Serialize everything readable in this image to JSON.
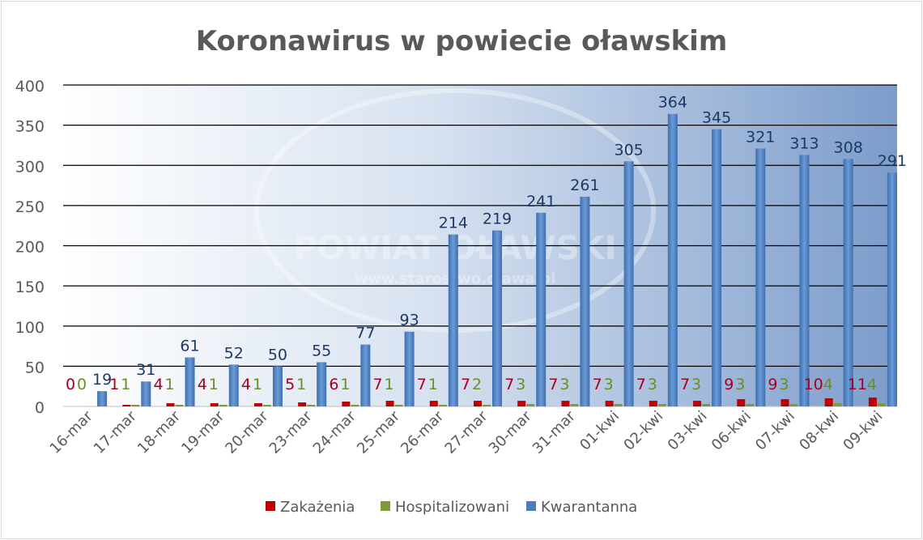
{
  "chart_data": {
    "type": "bar",
    "title": "Koronawirus w powiecie oławskim",
    "xlabel": "",
    "ylabel": "",
    "ylim": [
      0,
      400
    ],
    "yticks": [
      0,
      50,
      100,
      150,
      200,
      250,
      300,
      350,
      400
    ],
    "grid": true,
    "legend_position": "bottom",
    "categories": [
      "16-mar",
      "17-mar",
      "18-mar",
      "19-mar",
      "20-mar",
      "23-mar",
      "24-mar",
      "25-mar",
      "26-mar",
      "27-mar",
      "30-mar",
      "31-mar",
      "01-kwi",
      "02-kwi",
      "03-kwi",
      "06-kwi",
      "07-kwi",
      "08-kwi",
      "09-kwi"
    ],
    "series": [
      {
        "name": "Zakażenia",
        "color": "#c00000",
        "label_color": "#a50021",
        "values": [
          0,
          1,
          4,
          4,
          4,
          5,
          6,
          7,
          7,
          7,
          7,
          7,
          7,
          7,
          7,
          9,
          9,
          10,
          11
        ]
      },
      {
        "name": "Hospitalizowani",
        "color": "#7f9a3c",
        "label_color": "#6b8e23",
        "values": [
          0,
          1,
          1,
          1,
          1,
          1,
          1,
          1,
          1,
          2,
          3,
          3,
          3,
          3,
          3,
          3,
          3,
          4,
          4
        ]
      },
      {
        "name": "Kwarantanna",
        "color": "#4a7ebb",
        "label_color": "#1f3864",
        "values": [
          19,
          31,
          61,
          52,
          50,
          55,
          77,
          93,
          214,
          219,
          241,
          261,
          305,
          364,
          345,
          321,
          313,
          308,
          291
        ]
      }
    ]
  },
  "watermark": {
    "line1": "POWIAT OŁAWSKI",
    "line2": "www.starostwo.olawa.pl"
  }
}
